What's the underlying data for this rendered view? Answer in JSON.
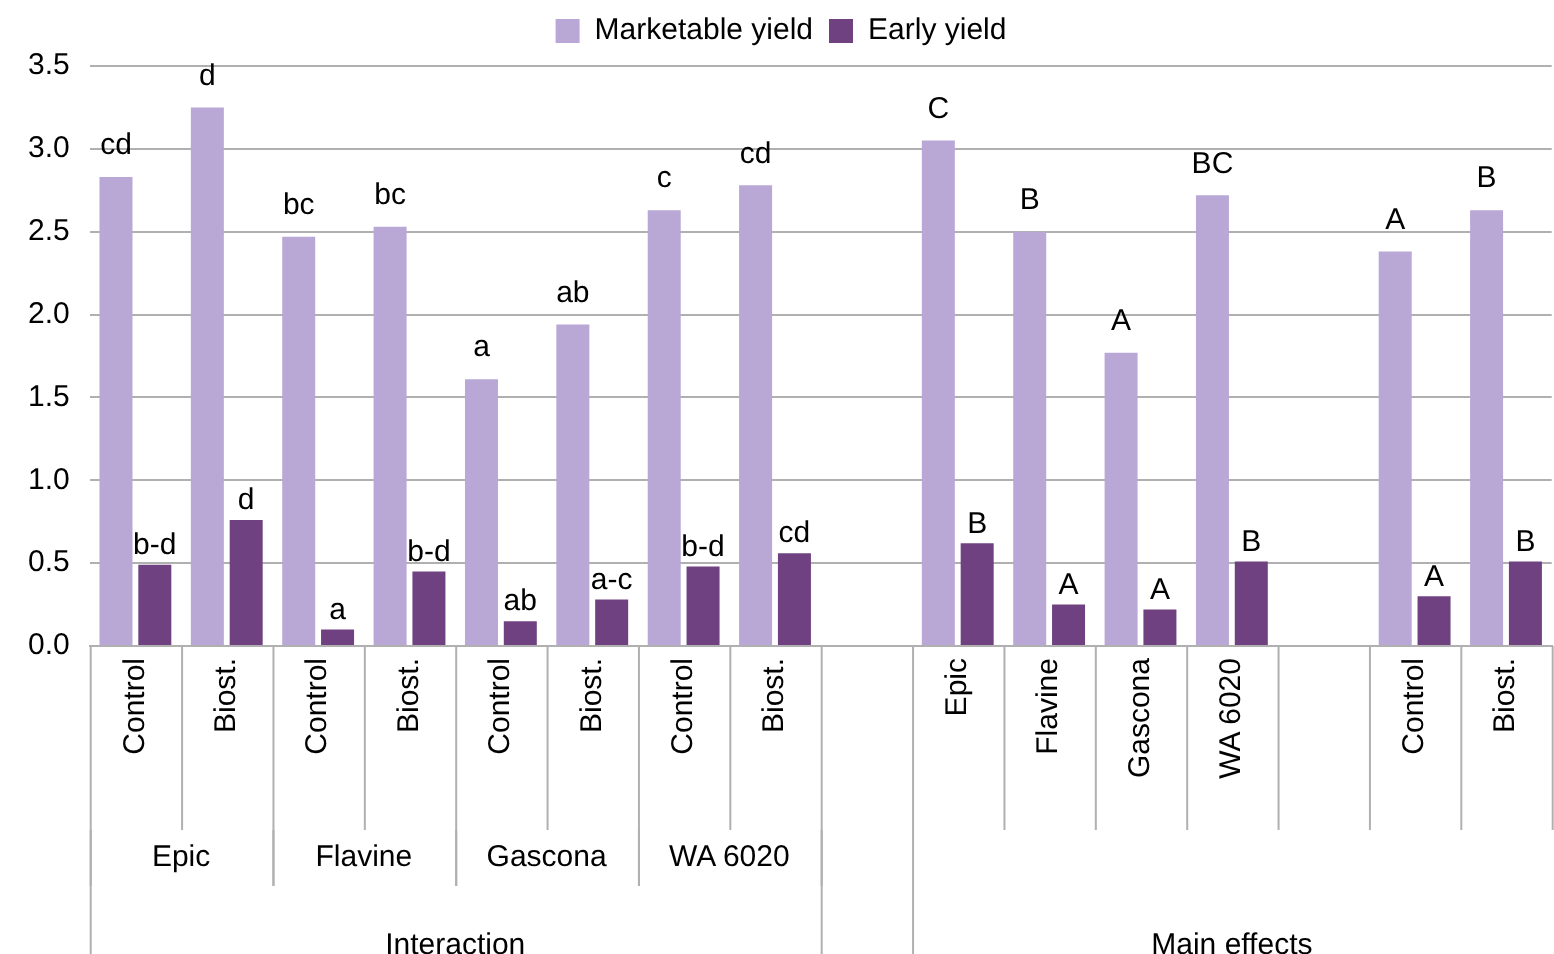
{
  "chart_data": {
    "type": "bar",
    "categories": [
      "Control",
      "Biost.",
      "Control",
      "Biost.",
      "Control",
      "Biost.",
      "Control",
      "Biost.",
      null,
      "Epic",
      "Flavine",
      "Gascona",
      "WA 6020",
      null,
      "Control",
      "Biost."
    ],
    "series": [
      {
        "name": "Marketable yield",
        "color": "#b9a8d6",
        "values": [
          2.83,
          3.25,
          2.47,
          2.53,
          1.61,
          1.94,
          2.63,
          2.78,
          null,
          3.05,
          2.5,
          1.77,
          2.72,
          null,
          2.38,
          2.63
        ],
        "value_labels": [
          "cd",
          "d",
          "bc",
          "bc",
          "a",
          "ab",
          "c",
          "cd",
          null,
          "C",
          "B",
          "A",
          "BC",
          null,
          "A",
          "B"
        ]
      },
      {
        "name": "Early yield",
        "color": "#6f4180",
        "values": [
          0.49,
          0.76,
          0.1,
          0.45,
          0.15,
          0.28,
          0.48,
          0.56,
          null,
          0.62,
          0.25,
          0.22,
          0.51,
          null,
          0.3,
          0.51
        ],
        "value_labels": [
          "b-d",
          "d",
          "a",
          "b-d",
          "ab",
          "a-c",
          "b-d",
          "cd",
          null,
          "B",
          "A",
          "A",
          "B",
          null,
          "A",
          "B"
        ]
      }
    ],
    "ylim": [
      0,
      3.5
    ],
    "yticks": [
      {
        "value": 0,
        "label": "0.0"
      },
      {
        "value": 0.5,
        "label": "0.5"
      },
      {
        "value": 1,
        "label": "1.0"
      },
      {
        "value": 1.5,
        "label": "1.5"
      },
      {
        "value": 2,
        "label": "2.0"
      },
      {
        "value": 2.5,
        "label": "2.5"
      },
      {
        "value": 3,
        "label": "3.0"
      },
      {
        "value": 3.5,
        "label": "3.5"
      }
    ],
    "grid": "y",
    "legend": "top",
    "annotations": [
      "Epic",
      "Flavine",
      "Gascona",
      "WA 6020",
      "Interaction",
      "Main effects"
    ]
  }
}
